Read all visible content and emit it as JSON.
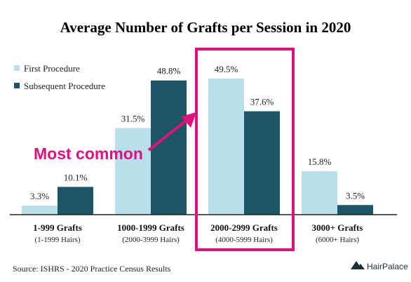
{
  "chart_data": {
    "type": "bar",
    "title": "Average Number of Grafts per Session in 2020",
    "categories": [
      "1-999 Grafts",
      "1000-1999 Grafts",
      "2000-2999 Grafts",
      "3000+ Grafts"
    ],
    "category_sublabels": [
      "(1-1999 Hairs)",
      "(2000-3999 Hairs)",
      "(4000-5999 Hairs)",
      "(6000+ Hairs)"
    ],
    "series": [
      {
        "name": "First Procedure",
        "values": [
          3.3,
          31.5,
          49.5,
          15.8
        ],
        "color": "#b9e0ea"
      },
      {
        "name": "Subsequent Procedure",
        "values": [
          10.1,
          48.8,
          37.6,
          3.5
        ],
        "color": "#1b5566"
      }
    ],
    "value_labels": [
      [
        "3.3%",
        "31.5%",
        "49.5%",
        "15.8%"
      ],
      [
        "10.1%",
        "48.8%",
        "37.6%",
        "3.5%"
      ]
    ],
    "ylim": [
      0,
      50
    ],
    "legend_position": "top-left",
    "grid": false,
    "annotation": {
      "text": "Most common",
      "color": "#e0107d",
      "highlight_category": "2000-2999 Grafts"
    }
  },
  "source": "Source: ISHRS - 2020 Practice Census Results",
  "brand": {
    "name": "HairPalace"
  }
}
